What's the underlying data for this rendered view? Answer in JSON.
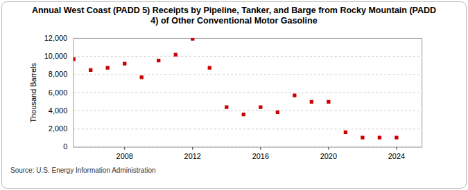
{
  "chart_data": {
    "type": "scatter",
    "title": "Annual West Coast (PADD 5) Receipts by Pipeline, Tanker, and Barge from Rocky Mountain (PADD 4) of Other Conventional Motor Gasoline",
    "y_label": "Thousand Barrels",
    "caption": "Source: U.S. Energy Information Administration",
    "x": [
      2005,
      2006,
      2007,
      2008,
      2009,
      2010,
      2011,
      2012,
      2013,
      2014,
      2015,
      2016,
      2017,
      2018,
      2019,
      2020,
      2021,
      2022,
      2023,
      2024
    ],
    "values": [
      9700,
      8500,
      8750,
      9200,
      7700,
      9550,
      10200,
      11950,
      8750,
      4400,
      3600,
      4400,
      3850,
      5700,
      5000,
      5000,
      1650,
      1050,
      1050,
      1050
    ],
    "color": "#cc0000",
    "marker": "square",
    "xlim": [
      2005,
      2025.5
    ],
    "xticks": [
      2008,
      2012,
      2016,
      2020,
      2024
    ],
    "ylim": [
      0,
      12000
    ],
    "yticks": [
      0,
      {
        "value": 2000,
        "label": "2,000"
      },
      {
        "value": 4000,
        "label": "4,000"
      },
      {
        "value": 6000,
        "label": "6,000"
      },
      {
        "value": 8000,
        "label": "8,000"
      },
      {
        "value": 10000,
        "label": "10,000"
      },
      {
        "value": 12000,
        "label": "12,000"
      }
    ],
    "grid": true
  }
}
